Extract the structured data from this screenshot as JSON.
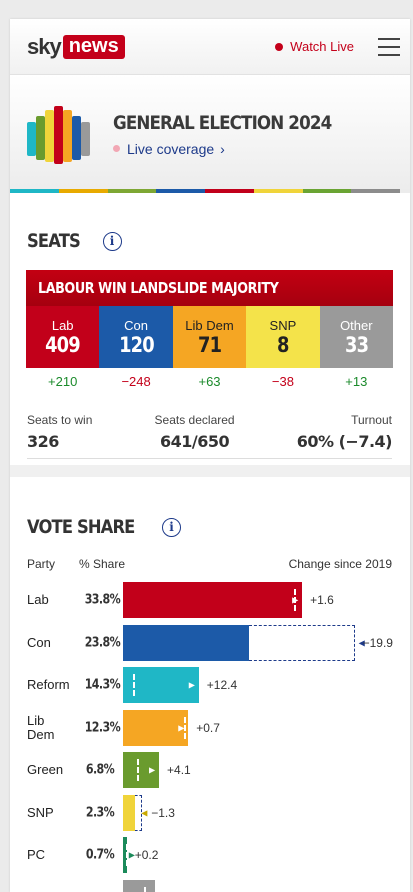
{
  "header": {
    "logo_sky": "sky",
    "logo_news": "news",
    "watch_live": "Watch Live",
    "brand_color": "#c4001a"
  },
  "banner": {
    "title": "GENERAL ELECTION 2024",
    "live_label": "Live coverage",
    "stripe_colors": [
      "#1fb7c6",
      "#e8aa00",
      "#7ea734",
      "#1c5aa8",
      "#c1001b",
      "#f0d43a",
      "#6aa433",
      "#8c8c8c"
    ]
  },
  "seats": {
    "heading": "SEATS",
    "result_banner": "LABOUR WIN LANDSLIDE MAJORITY",
    "parties": [
      {
        "name": "Lab",
        "seats": "409",
        "change": "+210",
        "color": "#c2001a",
        "text": "#ffffff",
        "change_color": "#1b8a2b"
      },
      {
        "name": "Con",
        "seats": "120",
        "change": "−248",
        "color": "#1c5aa8",
        "text": "#ffffff",
        "change_color": "#c4001a"
      },
      {
        "name": "Lib Dem",
        "seats": "71",
        "change": "+63",
        "color": "#f5a623",
        "text": "#222222",
        "change_color": "#1b8a2b"
      },
      {
        "name": "SNP",
        "seats": "8",
        "change": "−38",
        "color": "#f4e34a",
        "text": "#222222",
        "change_color": "#c4001a"
      },
      {
        "name": "Other",
        "seats": "33",
        "change": "+13",
        "color": "#9a9a9a",
        "text": "#ffffff",
        "change_color": "#1b8a2b"
      }
    ],
    "stats": {
      "to_win_label": "Seats to win",
      "to_win_value": "326",
      "declared_label": "Seats declared",
      "declared_value": "641/650",
      "turnout_label": "Turnout",
      "turnout_value": "60% (−7.4)"
    }
  },
  "vote_share": {
    "heading": "VOTE SHARE",
    "col_party": "Party",
    "col_share": "% Share",
    "col_change": "Change since 2019",
    "rows": [
      {
        "party": "Lab",
        "share": "33.8%",
        "change": "+1.6",
        "value": 33.8,
        "prev": 32.2,
        "color": "#c2001a"
      },
      {
        "party": "Con",
        "share": "23.8%",
        "change": "−19.9",
        "value": 23.8,
        "prev": 43.7,
        "color": "#1c5aa8"
      },
      {
        "party": "Reform",
        "share": "14.3%",
        "change": "+12.4",
        "value": 14.3,
        "prev": 1.9,
        "color": "#1fb7c6"
      },
      {
        "party": "Lib Dem",
        "share": "12.3%",
        "change": "+0.7",
        "value": 12.3,
        "prev": 11.6,
        "color": "#f5a623"
      },
      {
        "party": "Green",
        "share": "6.8%",
        "change": "+4.1",
        "value": 6.8,
        "prev": 2.7,
        "color": "#6a9b2e"
      },
      {
        "party": "SNP",
        "share": "2.3%",
        "change": "−1.3",
        "value": 2.3,
        "prev": 3.6,
        "color": "#f0d43a"
      },
      {
        "party": "PC",
        "share": "0.7%",
        "change": "+0.2",
        "value": 0.7,
        "prev": 0.5,
        "color": "#1b8a5a"
      },
      {
        "party": "",
        "share": "",
        "change": "",
        "value": 6.0,
        "prev": 4.0,
        "color": "#9a9a9a"
      }
    ]
  }
}
